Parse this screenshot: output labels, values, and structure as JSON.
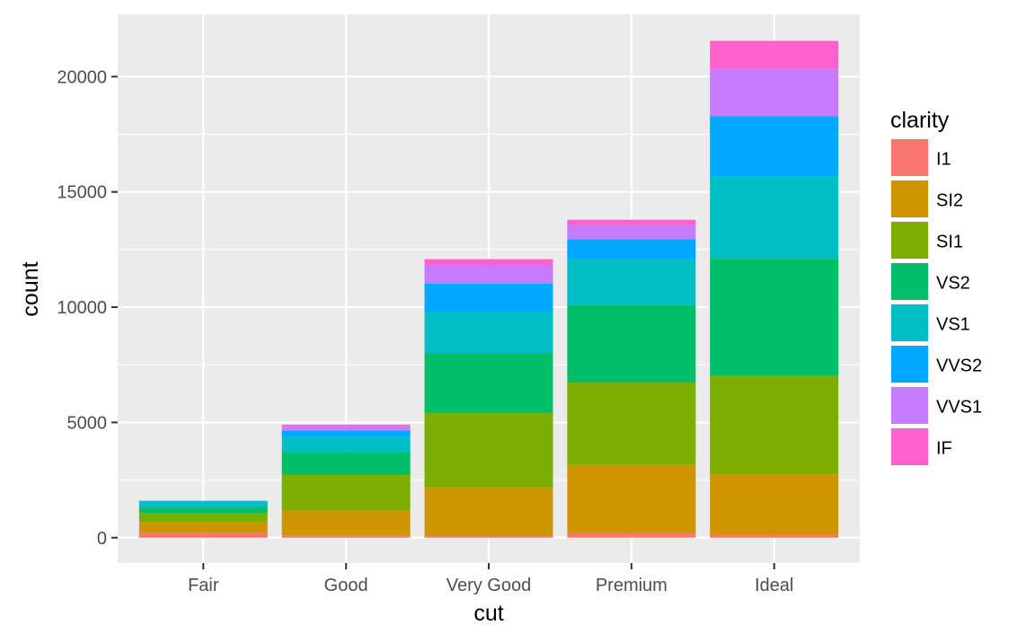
{
  "chart_data": {
    "type": "bar",
    "stacked": true,
    "title": "",
    "xlabel": "cut",
    "ylabel": "count",
    "categories": [
      "Fair",
      "Good",
      "Very Good",
      "Premium",
      "Ideal"
    ],
    "ylim": [
      -1100,
      22700
    ],
    "yticks": [
      0,
      5000,
      10000,
      15000,
      20000
    ],
    "ytick_labels": [
      "0",
      "5000",
      "10000",
      "15000",
      "20000"
    ],
    "grid": true,
    "legend_position": "right",
    "legend_title": "clarity",
    "series": [
      {
        "name": "I1",
        "color": "#F8766D",
        "values": [
          210,
          96,
          84,
          205,
          146
        ]
      },
      {
        "name": "SI2",
        "color": "#CD9600",
        "values": [
          466,
          1081,
          2100,
          2949,
          2598
        ]
      },
      {
        "name": "SI1",
        "color": "#7CAE00",
        "values": [
          408,
          1560,
          3240,
          3575,
          4282
        ]
      },
      {
        "name": "VS2",
        "color": "#00BE67",
        "values": [
          261,
          978,
          2591,
          3357,
          5071
        ]
      },
      {
        "name": "VS1",
        "color": "#00BFC4",
        "values": [
          170,
          648,
          1775,
          1989,
          3589
        ]
      },
      {
        "name": "VVS2",
        "color": "#00A9FF",
        "values": [
          69,
          286,
          1235,
          870,
          2606
        ]
      },
      {
        "name": "VVS1",
        "color": "#C77CFF",
        "values": [
          17,
          186,
          789,
          616,
          2047
        ]
      },
      {
        "name": "IF",
        "color": "#FF61CC",
        "values": [
          9,
          71,
          268,
          230,
          1212
        ]
      }
    ]
  }
}
